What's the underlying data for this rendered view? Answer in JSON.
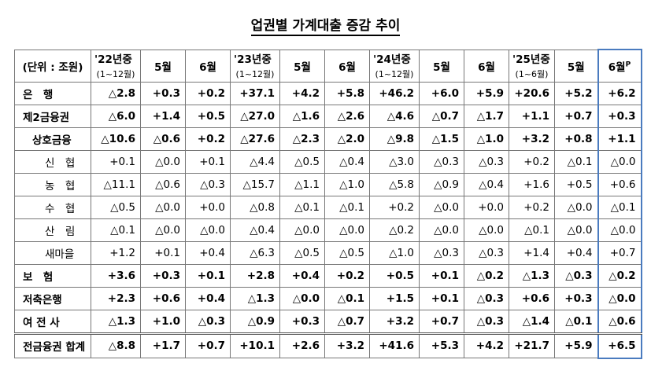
{
  "title": "업권별 가계대출 증감 추이",
  "table": {
    "unit": "(단위 : 조원)",
    "groups": [
      {
        "year": "'22년중",
        "period": "(1~12월)",
        "months": [
          "5월",
          "6월"
        ]
      },
      {
        "year": "'23년중",
        "period": "(1~12월)",
        "months": [
          "5월",
          "6월"
        ]
      },
      {
        "year": "'24년중",
        "period": "(1~12월)",
        "months": [
          "5월",
          "6월"
        ]
      },
      {
        "year": "'25년중",
        "period": "(1~6월)",
        "months": [
          "5월",
          "6월"
        ],
        "last_mark": "P"
      }
    ],
    "rows": [
      {
        "label": "은　행",
        "cells": [
          "△2.8",
          "+0.3",
          "+0.2",
          "+37.1",
          "+4.2",
          "+5.8",
          "+46.2",
          "+6.0",
          "+5.9",
          "+20.6",
          "+5.2",
          "+6.2"
        ]
      },
      {
        "label": "제2금융권",
        "cells": [
          "△6.0",
          "+1.4",
          "+0.5",
          "△27.0",
          "△1.6",
          "△2.6",
          "△4.6",
          "△0.7",
          "△1.7",
          "+1.1",
          "+0.7",
          "+0.3"
        ]
      },
      {
        "label": "상호금융",
        "cells": [
          "△10.6",
          "△0.6",
          "+0.2",
          "△27.6",
          "△2.3",
          "△2.0",
          "△9.8",
          "△1.5",
          "△1.0",
          "+3.2",
          "+0.8",
          "+1.1"
        ]
      },
      {
        "label": "신　협",
        "cells": [
          "+0.1",
          "△0.0",
          "+0.1",
          "△4.4",
          "△0.5",
          "△0.4",
          "△3.0",
          "△0.3",
          "△0.3",
          "+0.2",
          "△0.1",
          "△0.0"
        ]
      },
      {
        "label": "농　협",
        "cells": [
          "△11.1",
          "△0.6",
          "△0.3",
          "△15.7",
          "△1.1",
          "△1.0",
          "△5.8",
          "△0.9",
          "△0.4",
          "+1.6",
          "+0.5",
          "+0.6"
        ]
      },
      {
        "label": "수　협",
        "cells": [
          "△0.5",
          "△0.0",
          "+0.0",
          "△0.8",
          "△0.1",
          "△0.1",
          "+0.2",
          "△0.0",
          "+0.0",
          "+0.2",
          "△0.0",
          "△0.1"
        ]
      },
      {
        "label": "산　림",
        "cells": [
          "△0.1",
          "△0.0",
          "△0.0",
          "△0.4",
          "△0.0",
          "△0.0",
          "△0.2",
          "△0.0",
          "△0.0",
          "△0.1",
          "△0.0",
          "△0.0"
        ]
      },
      {
        "label": "새마을",
        "cells": [
          "+1.2",
          "+0.1",
          "+0.4",
          "△6.3",
          "△0.5",
          "△0.5",
          "△1.0",
          "△0.3",
          "△0.3",
          "+1.4",
          "+0.4",
          "+0.7"
        ]
      },
      {
        "label": "보　험",
        "cells": [
          "+3.6",
          "+0.3",
          "+0.1",
          "+2.8",
          "+0.4",
          "+0.2",
          "+0.5",
          "+0.1",
          "△0.2",
          "△1.3",
          "△0.3",
          "△0.2"
        ]
      },
      {
        "label": "저축은행",
        "cells": [
          "+2.3",
          "+0.6",
          "+0.4",
          "△1.3",
          "△0.0",
          "△0.1",
          "+1.5",
          "+0.1",
          "△0.3",
          "+0.6",
          "+0.3",
          "△0.0"
        ]
      },
      {
        "label": "여 전 사",
        "cells": [
          "△1.3",
          "+1.0",
          "△0.3",
          "△0.9",
          "+0.3",
          "△0.7",
          "+3.2",
          "+0.7",
          "△0.3",
          "△1.4",
          "△0.1",
          "△0.6"
        ]
      },
      {
        "label": "전금융권 합계",
        "cells": [
          "△8.8",
          "+1.7",
          "+0.7",
          "+10.1",
          "+2.6",
          "+3.2",
          "+41.6",
          "+5.3",
          "+4.2",
          "+21.7",
          "+5.9",
          "+6.5"
        ]
      }
    ]
  }
}
